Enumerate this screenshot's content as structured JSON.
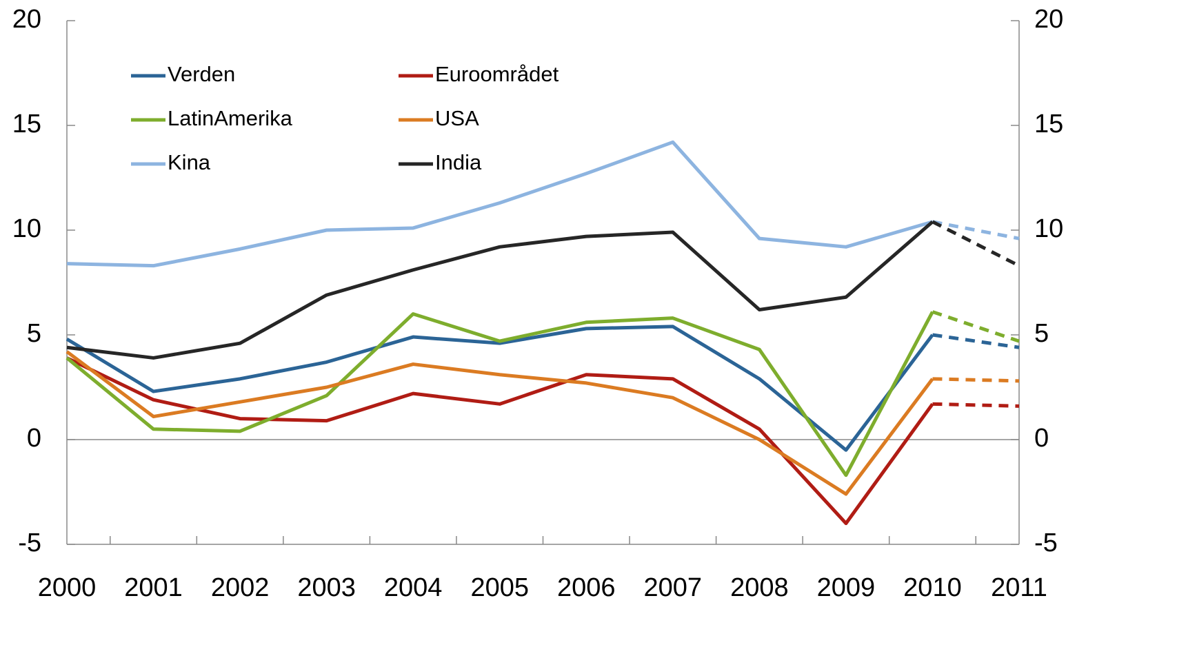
{
  "chart_data": {
    "type": "line",
    "x": [
      2000,
      2001,
      2002,
      2003,
      2004,
      2005,
      2006,
      2007,
      2008,
      2009,
      2010,
      2011
    ],
    "xlim": [
      2000,
      2011
    ],
    "xticks": [
      2000,
      2001,
      2002,
      2003,
      2004,
      2005,
      2006,
      2007,
      2008,
      2009,
      2010,
      2011
    ],
    "ylim": [
      -5,
      20
    ],
    "yticks": [
      -5,
      0,
      5,
      10,
      15,
      20
    ],
    "y2lim": [
      -5,
      20
    ],
    "y2ticks": [
      -5,
      0,
      5,
      10,
      15,
      20
    ],
    "forecast_from": 2010,
    "legend": "upper left",
    "series": [
      {
        "name": "Verden",
        "color": "#2b6496",
        "values": [
          4.8,
          2.3,
          2.9,
          3.7,
          4.9,
          4.6,
          5.3,
          5.4,
          2.9,
          -0.5,
          5.0,
          4.4
        ]
      },
      {
        "name": "Euroområdet",
        "color": "#b01c14",
        "values": [
          3.9,
          1.9,
          1.0,
          0.9,
          2.2,
          1.7,
          3.1,
          2.9,
          0.5,
          -4.0,
          1.7,
          1.6
        ]
      },
      {
        "name": "LatinAmerika",
        "color": "#7ead2d",
        "values": [
          3.9,
          0.5,
          0.4,
          2.1,
          6.0,
          4.7,
          5.6,
          5.8,
          4.3,
          -1.7,
          6.1,
          4.7
        ]
      },
      {
        "name": "USA",
        "color": "#db7b22",
        "values": [
          4.2,
          1.1,
          1.8,
          2.5,
          3.6,
          3.1,
          2.7,
          2.0,
          0.0,
          -2.6,
          2.9,
          2.8
        ]
      },
      {
        "name": "Kina",
        "color": "#8db4e0",
        "values": [
          8.4,
          8.3,
          9.1,
          10.0,
          10.1,
          11.3,
          12.7,
          14.2,
          9.6,
          9.2,
          10.4,
          9.6
        ]
      },
      {
        "name": "India",
        "color": "#262626",
        "values": [
          4.4,
          3.9,
          4.6,
          6.9,
          8.1,
          9.2,
          9.7,
          9.9,
          6.2,
          6.8,
          10.4,
          8.3
        ]
      }
    ]
  }
}
